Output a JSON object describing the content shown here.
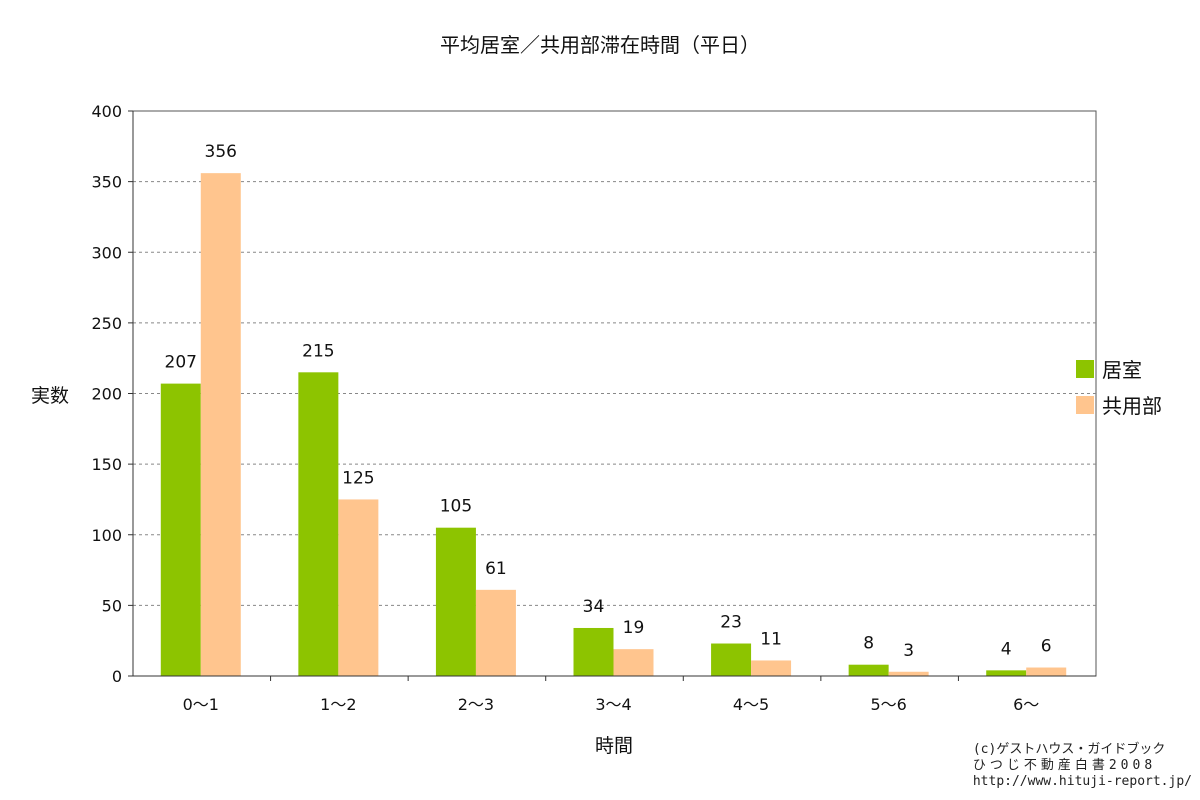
{
  "chart_data": {
    "type": "bar",
    "title": "平均居室／共用部滞在時間（平日）",
    "xlabel": "時間",
    "ylabel": "実数",
    "categories": [
      "0～1",
      "1～2",
      "2～3",
      "3～4",
      "4～5",
      "5～6",
      "6～"
    ],
    "series": [
      {
        "name": "居室",
        "color": "#8dc400",
        "values": [
          207,
          215,
          105,
          34,
          23,
          8,
          4
        ]
      },
      {
        "name": "共用部",
        "color": "#ffc58e",
        "values": [
          356,
          125,
          61,
          19,
          11,
          3,
          6
        ]
      }
    ],
    "ylim": [
      0,
      400
    ],
    "yticks": [
      0,
      50,
      100,
      150,
      200,
      250,
      300,
      350,
      400
    ],
    "grid": true,
    "legend": "right"
  },
  "credit": {
    "line1": "(c)ゲストハウス・ガイドブック",
    "line2": "ひつじ不動産白書2008",
    "line3": "http://www.hituji-report.jp/"
  }
}
